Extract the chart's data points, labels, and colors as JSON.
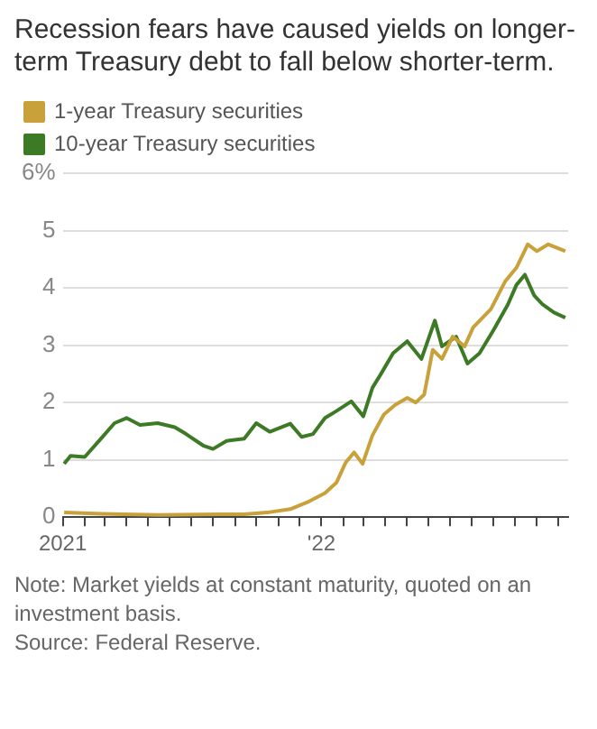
{
  "chart_data": {
    "type": "line",
    "title": "Recession fears have caused yields on longer-term Treasury debt to fall below shorter-term.",
    "annotations": [
      "Note: Market yields at constant maturity, quoted on an investment basis.",
      "Source: Federal Reserve."
    ],
    "legend": "top left",
    "grid": "y",
    "marker": "none",
    "line_style": "solid",
    "xlim": [
      "2021-01-01",
      "2022-12-15"
    ],
    "xticks": [
      {
        "value": "2021-01-01",
        "label": "2021"
      },
      {
        "value": "2021-02-01",
        "label": null
      },
      {
        "value": "2021-03-01",
        "label": null
      },
      {
        "value": "2021-04-01",
        "label": null
      },
      {
        "value": "2021-05-01",
        "label": null
      },
      {
        "value": "2021-06-01",
        "label": null
      },
      {
        "value": "2021-07-01",
        "label": null
      },
      {
        "value": "2021-08-01",
        "label": null
      },
      {
        "value": "2021-09-01",
        "label": null
      },
      {
        "value": "2021-10-01",
        "label": null
      },
      {
        "value": "2021-11-01",
        "label": null
      },
      {
        "value": "2021-12-01",
        "label": null
      },
      {
        "value": "2022-01-01",
        "label": "'22"
      },
      {
        "value": "2022-02-01",
        "label": null
      },
      {
        "value": "2022-03-01",
        "label": null
      },
      {
        "value": "2022-04-01",
        "label": null
      },
      {
        "value": "2022-05-01",
        "label": null
      },
      {
        "value": "2022-06-01",
        "label": null
      },
      {
        "value": "2022-07-01",
        "label": null
      },
      {
        "value": "2022-08-01",
        "label": null
      },
      {
        "value": "2022-09-01",
        "label": null
      },
      {
        "value": "2022-10-01",
        "label": null
      },
      {
        "value": "2022-11-01",
        "label": null
      },
      {
        "value": "2022-12-01",
        "label": null
      }
    ],
    "ylim": [
      0,
      6
    ],
    "yticks": [
      0,
      1,
      2,
      3,
      4,
      5,
      {
        "value": 6,
        "label": "6%"
      }
    ],
    "series": [
      {
        "name": "1-year Treasury securities",
        "color": "#c9a13a",
        "x": [
          "2021-01-03",
          "2021-02-25",
          "2021-05-15",
          "2021-08-09",
          "2021-09-14",
          "2021-10-16",
          "2021-11-18",
          "2021-12-12",
          "2022-01-06",
          "2022-01-22",
          "2022-02-04",
          "2022-02-16",
          "2022-02-28",
          "2022-03-14",
          "2022-03-30",
          "2022-04-15",
          "2022-05-02",
          "2022-05-14",
          "2022-05-26",
          "2022-06-07",
          "2022-06-20",
          "2022-07-05",
          "2022-07-22",
          "2022-08-03",
          "2022-08-28",
          "2022-09-17",
          "2022-10-03",
          "2022-10-19",
          "2022-11-01",
          "2022-11-17",
          "2022-12-11"
        ],
        "values": [
          0.08,
          0.06,
          0.04,
          0.05,
          0.05,
          0.08,
          0.14,
          0.26,
          0.42,
          0.6,
          0.95,
          1.13,
          0.93,
          1.43,
          1.79,
          1.96,
          2.08,
          2.0,
          2.14,
          2.92,
          2.76,
          3.15,
          2.98,
          3.31,
          3.63,
          4.11,
          4.35,
          4.76,
          4.64,
          4.76,
          4.64
        ]
      },
      {
        "name": "10-year Treasury securities",
        "color": "#3d7a25",
        "x": [
          "2021-01-03",
          "2021-01-12",
          "2021-02-01",
          "2021-02-24",
          "2021-03-15",
          "2021-04-01",
          "2021-04-20",
          "2021-05-15",
          "2021-06-08",
          "2021-06-24",
          "2021-07-18",
          "2021-08-01",
          "2021-08-20",
          "2021-09-14",
          "2021-10-01",
          "2021-10-20",
          "2021-11-18",
          "2021-12-04",
          "2021-12-20",
          "2022-01-06",
          "2022-01-22",
          "2022-02-12",
          "2022-03-01",
          "2022-03-14",
          "2022-03-26",
          "2022-04-12",
          "2022-05-02",
          "2022-05-22",
          "2022-06-10",
          "2022-06-20",
          "2022-07-10",
          "2022-07-26",
          "2022-08-12",
          "2022-09-01",
          "2022-09-21",
          "2022-10-03",
          "2022-10-15",
          "2022-10-28",
          "2022-11-09",
          "2022-11-25",
          "2022-12-11"
        ],
        "values": [
          0.93,
          1.07,
          1.05,
          1.37,
          1.64,
          1.73,
          1.61,
          1.64,
          1.57,
          1.45,
          1.25,
          1.19,
          1.33,
          1.37,
          1.64,
          1.49,
          1.63,
          1.4,
          1.45,
          1.73,
          1.85,
          2.02,
          1.76,
          2.26,
          2.5,
          2.86,
          3.07,
          2.76,
          3.43,
          2.98,
          3.15,
          2.68,
          2.86,
          3.27,
          3.71,
          4.05,
          4.23,
          3.87,
          3.71,
          3.57,
          3.48
        ]
      }
    ]
  }
}
